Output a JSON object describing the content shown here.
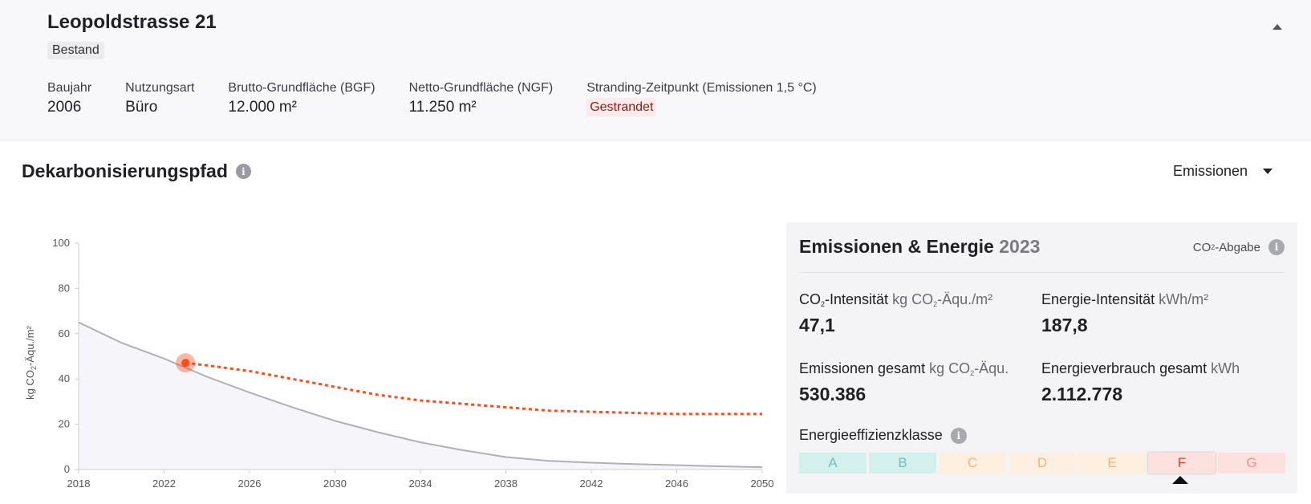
{
  "header": {
    "title": "Leopoldstrasse 21",
    "status_badge": "Bestand",
    "properties": [
      {
        "label": "Baujahr",
        "value": "2006"
      },
      {
        "label": "Nutzungsart",
        "value": "Büro"
      },
      {
        "label": "Brutto-Grundfläche (BGF)",
        "value": "12.000 m²"
      },
      {
        "label": "Netto-Grundfläche (NGF)",
        "value": "11.250 m²"
      },
      {
        "label": "Stranding-Zeitpunkt (Emissionen 1,5 °C)",
        "value": "Gestrandet"
      }
    ],
    "stranding_color": "#fdeaea"
  },
  "section": {
    "title": "Dekarbonisierungspfad",
    "dropdown_value": "Emissionen"
  },
  "chart_data": {
    "type": "line",
    "ylabel_parts": [
      "kg CO",
      "2",
      "-Äqu./m²"
    ],
    "x_ticks": [
      "2018",
      "2022",
      "2026",
      "2030",
      "2034",
      "2038",
      "2042",
      "2046",
      "2050"
    ],
    "y_ticks": [
      "0",
      "20",
      "40",
      "60",
      "80",
      "100"
    ],
    "xlim": [
      2018,
      2050
    ],
    "ylim": [
      0,
      100
    ],
    "series": [
      {
        "color": "#b0b0b8",
        "style": "solid",
        "x": [
          2018,
          2020,
          2022,
          2024,
          2026,
          2028,
          2030,
          2032,
          2034,
          2036,
          2038,
          2040,
          2042,
          2044,
          2046,
          2048,
          2050
        ],
        "y": [
          65,
          56,
          49,
          41,
          34,
          27.5,
          21.5,
          16.5,
          12,
          8.5,
          5.5,
          3.8,
          3,
          2.4,
          1.9,
          1.4,
          1
        ]
      },
      {
        "color": "#ff4a1c",
        "style": "dotted",
        "x": [
          2023,
          2024,
          2026,
          2028,
          2030,
          2032,
          2034,
          2036,
          2038,
          2040,
          2042,
          2044,
          2046,
          2048,
          2050
        ],
        "y": [
          47.1,
          46,
          43.5,
          40,
          36.5,
          33,
          30.5,
          29,
          27.5,
          26,
          25.5,
          25,
          24.5,
          24.5,
          24.5
        ]
      }
    ],
    "marker": {
      "x": 2023,
      "y": 47.1,
      "color": "#ff4a1c"
    }
  },
  "panel": {
    "title": "Emissionen & Energie",
    "year": "2023",
    "co2_abgabe": {
      "pre": "CO",
      "sub": "2",
      "post": "-Abgabe"
    },
    "metrics": {
      "co2_intensity": {
        "label_pre": "CO",
        "label_sub": "2",
        "label_post": "-Intensität",
        "unit_pre": "kg CO",
        "unit_sub": "2",
        "unit_post": "-Äqu./m²",
        "value": "47,1"
      },
      "energy_intensity": {
        "label": "Energie-Intensität",
        "unit": "kWh/m²",
        "value": "187,8"
      },
      "total_emissions": {
        "label": "Emissionen gesamt",
        "unit_pre": "kg CO",
        "unit_sub": "2",
        "unit_post": "-Äqu.",
        "value": "530.386"
      },
      "total_energy": {
        "label": "Energieverbrauch gesamt",
        "unit": "kWh",
        "value": "2.112.778"
      }
    },
    "efficiency_label": "Energieeffizienzklasse",
    "efficiency_classes": [
      {
        "label": "A",
        "bg": "#d3f0ec",
        "fg": "#6cc3b8"
      },
      {
        "label": "B",
        "bg": "#d3f0ec",
        "fg": "#6cc3b8"
      },
      {
        "label": "C",
        "bg": "#fdf0e0",
        "fg": "#f3b27a"
      },
      {
        "label": "D",
        "bg": "#fdf0e0",
        "fg": "#f3b27a"
      },
      {
        "label": "E",
        "bg": "#fdf0e0",
        "fg": "#f3b27a"
      },
      {
        "label": "F",
        "bg": "#fde1df",
        "fg": "#e53e2a"
      },
      {
        "label": "G",
        "bg": "#fde1df",
        "fg": "#f2938a"
      }
    ],
    "selected_class": "F"
  }
}
